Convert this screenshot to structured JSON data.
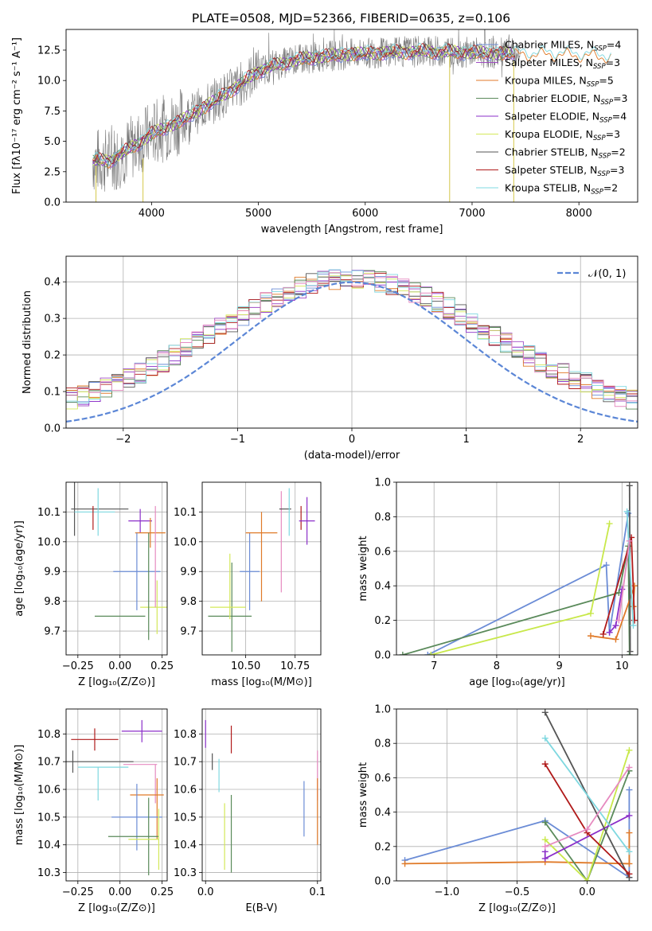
{
  "title": "PLATE=0508, MJD=52366, FIBERID=0635, z=0.106",
  "colors": {
    "Chabrier MILES": "#6b8cd6",
    "Salpeter MILES": "#a04cc4",
    "Kroupa MILES": "#e07a28",
    "Chabrier ELODIE": "#5a8a5a",
    "Salpeter ELODIE": "#8b2fc9",
    "Kroupa ELODIE": "#d4e85a",
    "Chabrier STELIB": "#555555",
    "Salpeter STELIB": "#b01a1a",
    "Kroupa STELIB": "#7fd8e0",
    "Pink": "#e68ac0",
    "Lime": "#c8e84a",
    "Data": "#7a7a7a"
  },
  "chart_data": [
    {
      "type": "line",
      "title": "PLATE=0508, MJD=52366, FIBERID=0635, z=0.106",
      "xlabel": "wavelength [Angstrom, rest frame]",
      "ylabel": "Flux [fλ10⁻¹⁷ erg cm⁻² s⁻¹ A⁻¹]",
      "xlim": [
        3200,
        8550
      ],
      "ylim": [
        0,
        14.2
      ],
      "xticks": [
        "4000",
        "5000",
        "6000",
        "7000",
        "8000"
      ],
      "yticks": [
        "0.0",
        "2.5",
        "5.0",
        "7.5",
        "10.0",
        "12.5"
      ],
      "legend_position": "right",
      "legend": [
        "Chabrier MILES, N$_{SSP}$=4",
        "Salpeter MILES, N$_{SSP}$=3",
        "Kroupa MILES, N$_{SSP}$=5",
        "Chabrier ELODIE, N$_{SSP}$=3",
        "Salpeter ELODIE, N$_{SSP}$=4",
        "Kroupa ELODIE, N$_{SSP}$=3",
        "Chabrier STELIB, N$_{SSP}$=2",
        "Salpeter STELIB, N$_{SSP}$=3",
        "Kroupa STELIB, N$_{SSP}$=2"
      ],
      "legend_text": [
        "Chabrier MILES, N",
        "Salpeter MILES, N",
        "Kroupa MILES, N",
        "Chabrier ELODIE, N",
        "Salpeter ELODIE, N",
        "Kroupa ELODIE, N",
        "Chabrier STELIB, N",
        "Salpeter STELIB, N",
        "Kroupa STELIB, N"
      ],
      "legend_sub": "SSP",
      "legend_vals": [
        "=4",
        "=3",
        "=5",
        "=3",
        "=4",
        "=3",
        "=2",
        "=3",
        "=2"
      ],
      "legend_colors": [
        "#6b8cd6",
        "#a04cc4",
        "#e07a28",
        "#5a8a5a",
        "#8b2fc9",
        "#d4e85a",
        "#555555",
        "#b01a1a",
        "#7fd8e0"
      ],
      "continuum": {
        "x": [
          3450,
          3600,
          3800,
          4000,
          4300,
          4600,
          4850,
          5000,
          5300,
          5600,
          5900,
          6200,
          6600,
          7000,
          7400,
          7800,
          8300
        ],
        "y": [
          3.4,
          3.4,
          4.4,
          5.6,
          6.8,
          8.4,
          9.8,
          10.8,
          11.6,
          12.0,
          12.2,
          12.3,
          12.4,
          12.3,
          12.2,
          12.2,
          12.0
        ]
      },
      "spikes": [
        {
          "x": 3480,
          "y0": 0,
          "y1": 3.0
        },
        {
          "x": 3920,
          "y0": 0,
          "y1": 3.6
        },
        {
          "x": 6790,
          "y0": 0,
          "y1": 12.0
        },
        {
          "x": 7390,
          "y0": 0,
          "y1": 12.0
        }
      ]
    },
    {
      "type": "histogram",
      "xlabel": "(data-model)/error",
      "ylabel": "Normed distribution",
      "xlim": [
        -2.5,
        2.5
      ],
      "ylim": [
        0,
        0.47
      ],
      "xticks": [
        "−2",
        "−1",
        "0",
        "1",
        "2"
      ],
      "xtick_values": [
        -2,
        -1,
        0,
        1,
        2
      ],
      "yticks": [
        "0.0",
        "0.1",
        "0.2",
        "0.3",
        "0.4"
      ],
      "grid": true,
      "legend_position": "top-right",
      "legend": [
        "𝒩(0, 1)"
      ],
      "normal_curve": {
        "mean": 0,
        "sd": 1,
        "color": "#5b86d6"
      },
      "bin_width": 0.1
    },
    {
      "type": "scatter-errorbar",
      "xlabel": "Z [log₁₀(Z/Z⊙)]",
      "ylabel": "age  [log₁₀(age/yr)]",
      "xlim": [
        -0.32,
        0.28
      ],
      "ylim": [
        9.62,
        10.2
      ],
      "xticks": [
        "−0.25",
        "0.00",
        "0.25"
      ],
      "xtick_values": [
        -0.25,
        0,
        0.25
      ],
      "yticks": [
        "9.7",
        "9.8",
        "9.9",
        "10.0",
        "10.1"
      ],
      "ytick_values": [
        9.7,
        9.8,
        9.9,
        10.0,
        10.1
      ],
      "points": [
        {
          "x": -0.12,
          "y": 10.11,
          "xerr": 0.17,
          "yerr": 0.0,
          "color": "#555555"
        },
        {
          "x": -0.27,
          "y": 10.11,
          "xerr": 0.0,
          "yerr": 0.09,
          "color": "#555555"
        },
        {
          "x": -0.15,
          "y": 10.1,
          "xerr": 0.12,
          "yerr": 0.0,
          "color": "#7fd8e0"
        },
        {
          "x": -0.13,
          "y": 10.1,
          "xerr": 0.0,
          "yerr": 0.08,
          "color": "#7fd8e0"
        },
        {
          "x": -0.16,
          "y": 10.08,
          "xerr": 0.0,
          "yerr": 0.04,
          "color": "#b01a1a"
        },
        {
          "x": 0.12,
          "y": 10.07,
          "xerr": 0.07,
          "yerr": 0.04,
          "color": "#8b2fc9"
        },
        {
          "x": 0.18,
          "y": 10.03,
          "xerr": 0.09,
          "yerr": 0.05,
          "color": "#e07a28"
        },
        {
          "x": 0.1,
          "y": 9.9,
          "xerr": 0.14,
          "yerr": 0.13,
          "color": "#6b8cd6"
        },
        {
          "x": 0.22,
          "y": 9.78,
          "xerr": 0.1,
          "yerr": 0.09,
          "color": "#d4e85a"
        },
        {
          "x": 0.21,
          "y": 9.95,
          "xerr": 0.0,
          "yerr": 0.17,
          "color": "#e68ac0"
        },
        {
          "x": 0.0,
          "y": 9.75,
          "xerr": 0.15,
          "yerr": 0.0,
          "color": "#5a8a5a"
        },
        {
          "x": 0.17,
          "y": 9.85,
          "xerr": 0.0,
          "yerr": 0.18,
          "color": "#5a8a5a"
        }
      ]
    },
    {
      "type": "scatter-errorbar",
      "xlabel": "mass [log₁₀(M/M⊙)]",
      "ylabel": "",
      "xlim": [
        10.28,
        10.88
      ],
      "ylim": [
        9.62,
        10.2
      ],
      "xticks": [
        "10.50",
        "10.75"
      ],
      "xtick_values": [
        10.5,
        10.75
      ],
      "yticks": [
        "9.7",
        "9.8",
        "9.9",
        "10.0",
        "10.1"
      ],
      "ytick_values": [
        9.7,
        9.8,
        9.9,
        10.0,
        10.1
      ],
      "points": [
        {
          "x": 10.42,
          "y": 9.75,
          "xerr": 0.11,
          "yerr": 0.0,
          "color": "#5a8a5a"
        },
        {
          "x": 10.43,
          "y": 9.78,
          "xerr": 0.0,
          "yerr": 0.15,
          "color": "#5a8a5a"
        },
        {
          "x": 10.41,
          "y": 9.78,
          "xerr": 0.09,
          "yerr": 0.0,
          "color": "#d4e85a"
        },
        {
          "x": 10.42,
          "y": 9.85,
          "xerr": 0.0,
          "yerr": 0.11,
          "color": "#d4e85a"
        },
        {
          "x": 10.52,
          "y": 9.9,
          "xerr": 0.05,
          "yerr": 0.13,
          "color": "#6b8cd6"
        },
        {
          "x": 10.58,
          "y": 10.03,
          "xerr": 0.08,
          "yerr": 0.0,
          "color": "#e07a28"
        },
        {
          "x": 10.58,
          "y": 9.95,
          "xerr": 0.0,
          "yerr": 0.15,
          "color": "#e07a28"
        },
        {
          "x": 10.68,
          "y": 10.0,
          "xerr": 0.0,
          "yerr": 0.17,
          "color": "#e68ac0"
        },
        {
          "x": 10.7,
          "y": 10.11,
          "xerr": 0.03,
          "yerr": 0.0,
          "color": "#555555"
        },
        {
          "x": 10.72,
          "y": 10.1,
          "xerr": 0.0,
          "yerr": 0.08,
          "color": "#7fd8e0"
        },
        {
          "x": 10.78,
          "y": 10.08,
          "xerr": 0.0,
          "yerr": 0.04,
          "color": "#b01a1a"
        },
        {
          "x": 10.81,
          "y": 10.07,
          "xerr": 0.04,
          "yerr": 0.08,
          "color": "#8b2fc9"
        }
      ]
    },
    {
      "type": "line",
      "xlabel": "age  [log₁₀(age/yr)]",
      "ylabel": "mass weight",
      "xlim": [
        6.4,
        10.25
      ],
      "ylim": [
        0,
        1.0
      ],
      "xticks": [
        "7",
        "8",
        "9",
        "10"
      ],
      "xtick_values": [
        7,
        8,
        9,
        10
      ],
      "yticks": [
        "0.0",
        "0.2",
        "0.4",
        "0.6",
        "0.8",
        "1.0"
      ],
      "ytick_values": [
        0,
        0.2,
        0.4,
        0.6,
        0.8,
        1.0
      ],
      "grid": true,
      "series": [
        {
          "color": "#6b8cd6",
          "x": [
            6.9,
            9.75,
            9.8,
            10.1
          ],
          "y": [
            0.0,
            0.52,
            0.13,
            0.82
          ]
        },
        {
          "color": "#5a8a5a",
          "x": [
            6.5,
            9.95,
            10.1,
            10.12
          ],
          "y": [
            0.0,
            0.36,
            0.63,
            0.0
          ]
        },
        {
          "color": "#c8e84a",
          "x": [
            6.95,
            9.5,
            9.8
          ],
          "y": [
            0.0,
            0.24,
            0.76
          ]
        },
        {
          "color": "#e07a28",
          "x": [
            9.5,
            9.9,
            10.2,
            10.18
          ],
          "y": [
            0.11,
            0.09,
            0.4,
            0.28
          ]
        },
        {
          "color": "#b01a1a",
          "x": [
            9.7,
            10.15,
            10.2
          ],
          "y": [
            0.12,
            0.68,
            0.2
          ]
        },
        {
          "color": "#8b2fc9",
          "x": [
            9.8,
            9.9,
            10.0
          ],
          "y": [
            0.13,
            0.17,
            0.38
          ]
        },
        {
          "color": "#555555",
          "x": [
            10.12,
            10.13
          ],
          "y": [
            0.98,
            0.02
          ]
        },
        {
          "color": "#7fd8e0",
          "x": [
            10.08,
            10.18
          ],
          "y": [
            0.83,
            0.17
          ]
        },
        {
          "color": "#e68ac0",
          "x": [
            9.95,
            10.12
          ],
          "y": [
            0.2,
            0.66
          ]
        }
      ]
    },
    {
      "type": "scatter-errorbar",
      "xlabel": "Z [log₁₀(Z/Z⊙)]",
      "ylabel": "mass [log₁₀(M/M⊙)]",
      "xlim": [
        -0.32,
        0.28
      ],
      "ylim": [
        10.27,
        10.89
      ],
      "xticks": [
        "−0.25",
        "0.00",
        "0.25"
      ],
      "xtick_values": [
        -0.25,
        0,
        0.25
      ],
      "yticks": [
        "10.3",
        "10.4",
        "10.5",
        "10.6",
        "10.7",
        "10.8"
      ],
      "ytick_values": [
        10.3,
        10.4,
        10.5,
        10.6,
        10.7,
        10.8
      ],
      "points": [
        {
          "x": 0.13,
          "y": 10.81,
          "xerr": 0.12,
          "yerr": 0.04,
          "color": "#8b2fc9"
        },
        {
          "x": -0.15,
          "y": 10.78,
          "xerr": 0.14,
          "yerr": 0.04,
          "color": "#b01a1a"
        },
        {
          "x": -0.12,
          "y": 10.7,
          "xerr": 0.2,
          "yerr": 0.0,
          "color": "#555555"
        },
        {
          "x": -0.28,
          "y": 10.7,
          "xerr": 0.0,
          "yerr": 0.04,
          "color": "#555555"
        },
        {
          "x": -0.1,
          "y": 10.68,
          "xerr": 0.15,
          "yerr": 0.0,
          "color": "#7fd8e0"
        },
        {
          "x": -0.13,
          "y": 10.62,
          "xerr": 0.0,
          "yerr": 0.06,
          "color": "#7fd8e0"
        },
        {
          "x": 0.12,
          "y": 10.69,
          "xerr": 0.1,
          "yerr": 0.0,
          "color": "#e68ac0"
        },
        {
          "x": 0.21,
          "y": 10.62,
          "xerr": 0.0,
          "yerr": 0.07,
          "color": "#e68ac0"
        },
        {
          "x": 0.16,
          "y": 10.58,
          "xerr": 0.1,
          "yerr": 0.0,
          "color": "#e07a28"
        },
        {
          "x": 0.22,
          "y": 10.53,
          "xerr": 0.0,
          "yerr": 0.11,
          "color": "#e07a28"
        },
        {
          "x": 0.1,
          "y": 10.5,
          "xerr": 0.15,
          "yerr": 0.12,
          "color": "#6b8cd6"
        },
        {
          "x": 0.08,
          "y": 10.43,
          "xerr": 0.15,
          "yerr": 0.0,
          "color": "#5a8a5a"
        },
        {
          "x": 0.17,
          "y": 10.43,
          "xerr": 0.0,
          "yerr": 0.14,
          "color": "#5a8a5a"
        },
        {
          "x": 0.14,
          "y": 10.42,
          "xerr": 0.09,
          "yerr": 0.0,
          "color": "#d4e85a"
        },
        {
          "x": 0.23,
          "y": 10.42,
          "xerr": 0.0,
          "yerr": 0.11,
          "color": "#d4e85a"
        }
      ]
    },
    {
      "type": "scatter-errorbar",
      "xlabel": "E(B-V)",
      "ylabel": "",
      "xlim": [
        -0.003,
        0.103
      ],
      "ylim": [
        10.27,
        10.89
      ],
      "xticks": [
        "0.0",
        "0.1"
      ],
      "xtick_values": [
        0.0,
        0.1
      ],
      "yticks": [
        "10.3",
        "10.4",
        "10.5",
        "10.6",
        "10.7",
        "10.8"
      ],
      "ytick_values": [
        10.3,
        10.4,
        10.5,
        10.6,
        10.7,
        10.8
      ],
      "points": [
        {
          "x": 0.0,
          "y": 10.8,
          "xerr": 0.0,
          "yerr": 0.05,
          "color": "#8b2fc9"
        },
        {
          "x": 0.023,
          "y": 10.78,
          "xerr": 0.0,
          "yerr": 0.05,
          "color": "#b01a1a"
        },
        {
          "x": 0.006,
          "y": 10.7,
          "xerr": 0.0,
          "yerr": 0.03,
          "color": "#555555"
        },
        {
          "x": 0.012,
          "y": 10.65,
          "xerr": 0.0,
          "yerr": 0.06,
          "color": "#7fd8e0"
        },
        {
          "x": 0.1,
          "y": 10.65,
          "xerr": 0.0,
          "yerr": 0.09,
          "color": "#e68ac0"
        },
        {
          "x": 0.088,
          "y": 10.53,
          "xerr": 0.0,
          "yerr": 0.1,
          "color": "#6b8cd6"
        },
        {
          "x": 0.1,
          "y": 10.52,
          "xerr": 0.0,
          "yerr": 0.12,
          "color": "#e07a28"
        },
        {
          "x": 0.017,
          "y": 10.43,
          "xerr": 0.0,
          "yerr": 0.12,
          "color": "#d4e85a"
        },
        {
          "x": 0.023,
          "y": 10.44,
          "xerr": 0.0,
          "yerr": 0.14,
          "color": "#5a8a5a"
        }
      ]
    },
    {
      "type": "line",
      "xlabel": "Z [log₁₀(Z/Z⊙)]",
      "ylabel": "mass weight",
      "xlim": [
        -1.36,
        0.36
      ],
      "ylim": [
        0,
        1.0
      ],
      "xticks": [
        "−1.0",
        "−0.5",
        "0.0"
      ],
      "xtick_values": [
        -1.0,
        -0.5,
        0.0
      ],
      "yticks": [
        "0.0",
        "0.2",
        "0.4",
        "0.6",
        "0.8",
        "1.0"
      ],
      "ytick_values": [
        0,
        0.2,
        0.4,
        0.6,
        0.8,
        1.0
      ],
      "grid": true,
      "series": [
        {
          "color": "#6b8cd6",
          "x": [
            -1.3,
            -0.3,
            0.3,
            0.3
          ],
          "y": [
            0.12,
            0.35,
            0.02,
            0.53
          ]
        },
        {
          "color": "#e07a28",
          "x": [
            -1.3,
            -0.3,
            0.3,
            0.3
          ],
          "y": [
            0.1,
            0.11,
            0.1,
            0.28
          ]
        },
        {
          "color": "#5a8a5a",
          "x": [
            -0.3,
            0.0,
            0.3
          ],
          "y": [
            0.34,
            0.0,
            0.64
          ]
        },
        {
          "color": "#c8e84a",
          "x": [
            -0.3,
            0.0,
            0.3
          ],
          "y": [
            0.24,
            0.0,
            0.76
          ]
        },
        {
          "color": "#8b2fc9",
          "x": [
            -0.3,
            -0.3,
            0.3
          ],
          "y": [
            0.17,
            0.13,
            0.38
          ]
        },
        {
          "color": "#555555",
          "x": [
            -0.3,
            0.3
          ],
          "y": [
            0.98,
            0.02
          ]
        },
        {
          "color": "#7fd8e0",
          "x": [
            -0.3,
            0.3
          ],
          "y": [
            0.83,
            0.17
          ]
        },
        {
          "color": "#b01a1a",
          "x": [
            -0.3,
            0.0,
            0.3
          ],
          "y": [
            0.68,
            0.28,
            0.04
          ]
        },
        {
          "color": "#e68ac0",
          "x": [
            -0.3,
            0.0,
            0.3
          ],
          "y": [
            0.2,
            0.3,
            0.66
          ]
        }
      ]
    }
  ]
}
